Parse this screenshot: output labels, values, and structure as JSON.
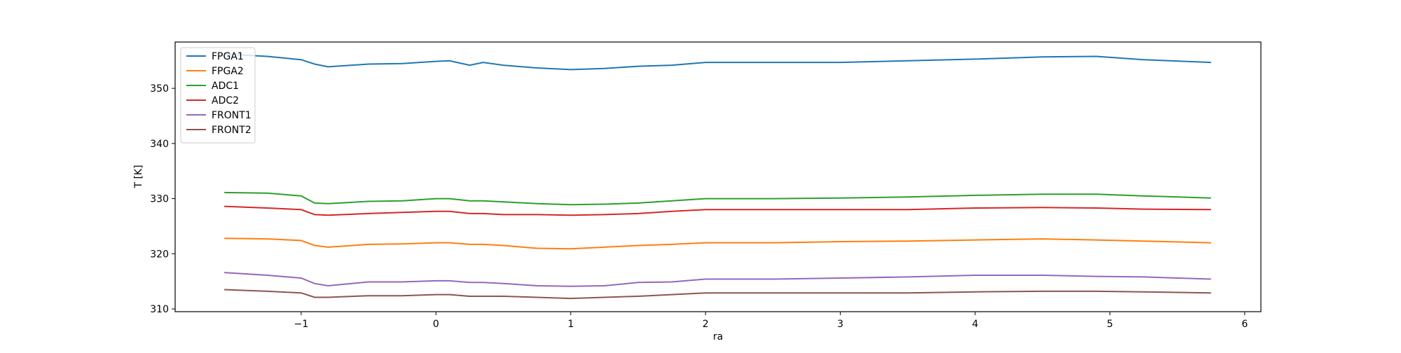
{
  "chart_data": {
    "type": "line",
    "xlabel": "ra",
    "ylabel": "T [K]",
    "x": [
      -1.57,
      -1.25,
      -1.0,
      -0.9,
      -0.8,
      -0.5,
      -0.25,
      0,
      0.1,
      0.25,
      0.35,
      0.5,
      0.75,
      1.0,
      1.25,
      1.5,
      1.75,
      2.0,
      2.5,
      3.0,
      3.5,
      4.0,
      4.5,
      4.9,
      5.25,
      5.75
    ],
    "series": [
      {
        "name": "FPGA1",
        "color": "#1f77b4",
        "values": [
          356.2,
          355.8,
          355.2,
          354.4,
          353.9,
          354.4,
          354.5,
          354.9,
          355.0,
          354.2,
          354.7,
          354.2,
          353.7,
          353.4,
          353.6,
          354.0,
          354.2,
          354.7,
          354.7,
          354.7,
          355.0,
          355.3,
          355.7,
          355.8,
          355.2,
          354.7
        ]
      },
      {
        "name": "FPGA2",
        "color": "#ff7f0e",
        "values": [
          322.8,
          322.7,
          322.4,
          321.5,
          321.2,
          321.7,
          321.8,
          322.0,
          322.0,
          321.7,
          321.7,
          321.5,
          321.0,
          320.9,
          321.2,
          321.5,
          321.7,
          322.0,
          322.0,
          322.2,
          322.3,
          322.5,
          322.7,
          322.5,
          322.3,
          322.0
        ]
      },
      {
        "name": "ADC1",
        "color": "#2ca02c",
        "values": [
          331.1,
          331.0,
          330.5,
          329.2,
          329.1,
          329.5,
          329.6,
          330.0,
          330.0,
          329.6,
          329.6,
          329.4,
          329.1,
          328.9,
          329.0,
          329.2,
          329.6,
          330.0,
          330.0,
          330.1,
          330.3,
          330.6,
          330.8,
          330.8,
          330.5,
          330.1
        ]
      },
      {
        "name": "ADC2",
        "color": "#d62728",
        "values": [
          328.6,
          328.3,
          328.0,
          327.1,
          327.0,
          327.3,
          327.5,
          327.7,
          327.7,
          327.3,
          327.3,
          327.1,
          327.1,
          327.0,
          327.1,
          327.3,
          327.7,
          328.0,
          328.0,
          328.0,
          328.0,
          328.3,
          328.4,
          328.3,
          328.1,
          328.0
        ]
      },
      {
        "name": "FRONT1",
        "color": "#9467bd",
        "values": [
          316.6,
          316.1,
          315.6,
          314.6,
          314.2,
          314.9,
          314.9,
          315.1,
          315.1,
          314.8,
          314.8,
          314.6,
          314.2,
          314.1,
          314.2,
          314.8,
          314.9,
          315.4,
          315.4,
          315.6,
          315.8,
          316.1,
          316.1,
          315.9,
          315.8,
          315.4
        ]
      },
      {
        "name": "FRONT2",
        "color": "#8c564b",
        "values": [
          313.5,
          313.2,
          312.9,
          312.1,
          312.1,
          312.4,
          312.4,
          312.6,
          312.6,
          312.3,
          312.3,
          312.3,
          312.1,
          311.9,
          312.1,
          312.3,
          312.6,
          312.9,
          312.9,
          312.9,
          312.9,
          313.1,
          313.2,
          313.2,
          313.1,
          312.9
        ]
      }
    ],
    "xlim": [
      -1.935,
      6.12
    ],
    "xticks": [
      {
        "value": -1,
        "label": "−1"
      },
      0,
      1,
      2,
      3,
      4,
      5,
      6
    ],
    "ylim": [
      309.5,
      358.4
    ],
    "yticks": [
      310,
      320,
      330,
      340,
      350
    ],
    "legend": "upper left",
    "grid": false
  }
}
